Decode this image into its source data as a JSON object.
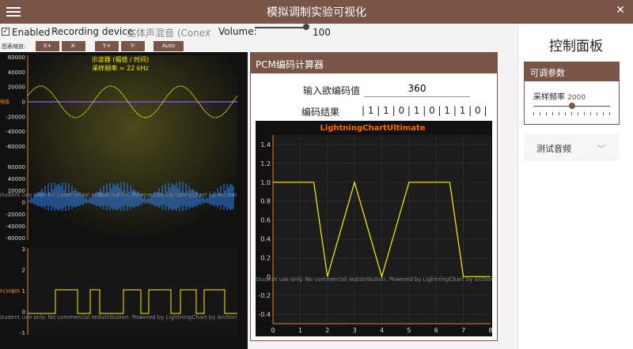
{
  "window": {
    "title": "模拟调制实验可视化",
    "close": "✕"
  },
  "toolbar": {
    "enabled_label": "Enabled",
    "enabled_checked": "✓",
    "recording_label": "Recording device:",
    "recording_value": "立体声混音 (Conexa",
    "volume_label": "Volume:",
    "volume_value": "100",
    "volume_level": 1.0,
    "scale_label": "图表缩放:",
    "buttons": [
      "X+",
      "X-",
      "Y+",
      "Y-",
      "Auto"
    ]
  },
  "oscilloscope": {
    "title": "示波器 (幅值 / 时间)",
    "subtitle": "采样频率 = 22 kHz",
    "yticks_top": [
      "60000",
      "40000",
      "20000",
      "0",
      "-20000",
      "-40000",
      "-60000"
    ],
    "yticks_mid": [
      "60000",
      "40000",
      "20000",
      "0",
      "-20000",
      "-40000",
      "-60000"
    ],
    "yticks_bottom": [
      "3",
      "2",
      "1",
      "0",
      "-1"
    ],
    "side_label_top": "幅值",
    "side_label_bottom": "PCM编码",
    "watermark": "Student use only. No commercial redistribution. Powered by LightningChart by Arction"
  },
  "pcm": {
    "header": "PCM编码计算器",
    "input_label": "输入欲编码值",
    "input_value": "360",
    "result_label": "编码结果",
    "result_value": "| 1 | 1 | 0 | 1 | 0 | 1 | 1 | 0 |"
  },
  "chart_data": {
    "type": "line",
    "title": "LightningChartUltimate",
    "x": [
      0,
      1,
      1.5,
      2,
      3,
      4,
      5,
      6,
      6.5,
      7,
      8
    ],
    "y": [
      1,
      1,
      1,
      0,
      1,
      0,
      1,
      1,
      1,
      0,
      0
    ],
    "xlim": [
      0,
      8
    ],
    "ylim": [
      -0.5,
      1.5
    ],
    "xticks": [
      "0",
      "1",
      "2",
      "3",
      "4",
      "5",
      "6",
      "7",
      "8"
    ],
    "yticks": [
      "1.4",
      "1.2",
      "1.0",
      "0.8",
      "0.6",
      "0.4",
      "0.2",
      "0",
      "-0.2",
      "-0.4"
    ],
    "line_color": "#ffee00",
    "watermark": "Student use only. No commercial redistribution. Powered by LightningChart by Arction"
  },
  "control_panel": {
    "title": "控制面板",
    "params_header": "可调参数",
    "sample_rate_label": "采样频率",
    "sample_rate_value": "2000",
    "test_audio_label": "测试音频"
  },
  "colors": {
    "brand": "#795548",
    "plot_bg": "#1a1a1a",
    "accent_line": "#8e44ff",
    "signal": "#ffee00",
    "spectrum": "#2e86ff"
  }
}
